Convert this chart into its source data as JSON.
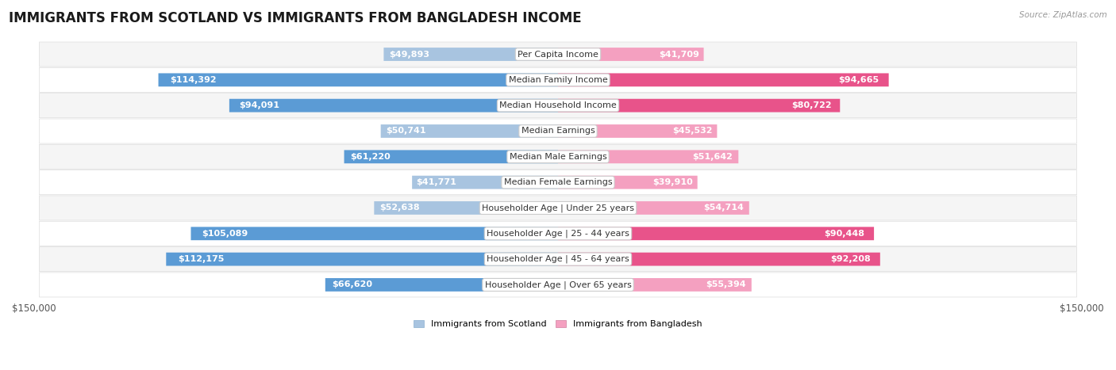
{
  "title": "IMMIGRANTS FROM SCOTLAND VS IMMIGRANTS FROM BANGLADESH INCOME",
  "source": "Source: ZipAtlas.com",
  "categories": [
    "Per Capita Income",
    "Median Family Income",
    "Median Household Income",
    "Median Earnings",
    "Median Male Earnings",
    "Median Female Earnings",
    "Householder Age | Under 25 years",
    "Householder Age | 25 - 44 years",
    "Householder Age | 45 - 64 years",
    "Householder Age | Over 65 years"
  ],
  "scotland_values": [
    49893,
    114392,
    94091,
    50741,
    61220,
    41771,
    52638,
    105089,
    112175,
    66620
  ],
  "bangladesh_values": [
    41709,
    94665,
    80722,
    45532,
    51642,
    39910,
    54714,
    90448,
    92208,
    55394
  ],
  "scotland_labels": [
    "$49,893",
    "$114,392",
    "$94,091",
    "$50,741",
    "$61,220",
    "$41,771",
    "$52,638",
    "$105,089",
    "$112,175",
    "$66,620"
  ],
  "bangladesh_labels": [
    "$41,709",
    "$94,665",
    "$80,722",
    "$45,532",
    "$51,642",
    "$39,910",
    "$54,714",
    "$90,448",
    "$92,208",
    "$55,394"
  ],
  "scotland_color_dark": "#5b9bd5",
  "scotland_color_light": "#a8c4e0",
  "bangladesh_color_dark": "#e8538a",
  "bangladesh_color_light": "#f4a0c0",
  "scotland_inside_threshold": 60000,
  "bangladesh_inside_threshold": 60000,
  "max_value": 150000,
  "bar_height": 0.52,
  "row_bg_light": "#f5f5f5",
  "row_bg_dark": "#ffffff",
  "legend_scotland": "Immigrants from Scotland",
  "legend_bangladesh": "Immigrants from Bangladesh",
  "title_fontsize": 12,
  "label_fontsize": 8.0,
  "category_fontsize": 8.0,
  "axis_label_fontsize": 8.5
}
